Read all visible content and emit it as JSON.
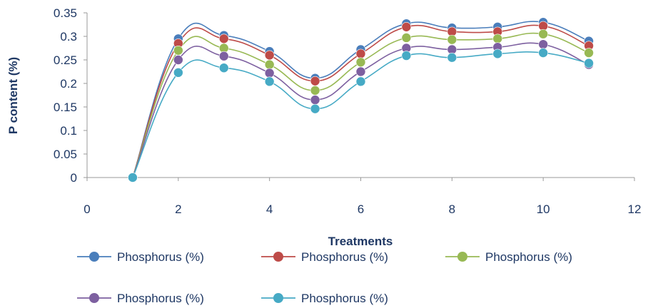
{
  "chart_data": {
    "type": "line",
    "title": "",
    "xlabel": "Treatments",
    "ylabel": "P content (%)",
    "xlim": [
      0,
      12
    ],
    "ylim": [
      0,
      0.35
    ],
    "x_ticks": [
      "0",
      "2",
      "4",
      "6",
      "8",
      "10",
      "12"
    ],
    "y_ticks": [
      "0",
      "0.05",
      "0.1",
      "0.15",
      "0.2",
      "0.25",
      "0.3",
      "0.35"
    ],
    "grid": false,
    "legend_position": "bottom",
    "x": [
      1,
      2,
      3,
      4,
      5,
      6,
      7,
      8,
      9,
      10,
      11
    ],
    "series": [
      {
        "name": "Phosphorus (%)",
        "color": "#4A7EBB",
        "values": [
          0.0,
          0.295,
          0.302,
          0.268,
          0.211,
          0.272,
          0.327,
          0.318,
          0.32,
          0.33,
          0.29
        ]
      },
      {
        "name": "Phosphorus (%)",
        "color": "#BE4B48",
        "values": [
          0.0,
          0.285,
          0.295,
          0.26,
          0.205,
          0.263,
          0.32,
          0.31,
          0.31,
          0.322,
          0.28
        ]
      },
      {
        "name": "Phosphorus (%)",
        "color": "#98B954",
        "values": [
          0.0,
          0.27,
          0.275,
          0.24,
          0.185,
          0.245,
          0.297,
          0.293,
          0.295,
          0.305,
          0.265
        ]
      },
      {
        "name": "Phosphorus (%)",
        "color": "#7D60A0",
        "values": [
          0.0,
          0.25,
          0.258,
          0.222,
          0.165,
          0.225,
          0.275,
          0.272,
          0.277,
          0.283,
          0.24
        ]
      },
      {
        "name": "Phosphorus (%)",
        "color": "#46AAC5",
        "values": [
          0.0,
          0.223,
          0.233,
          0.204,
          0.146,
          0.204,
          0.259,
          0.255,
          0.263,
          0.265,
          0.243
        ]
      }
    ]
  }
}
